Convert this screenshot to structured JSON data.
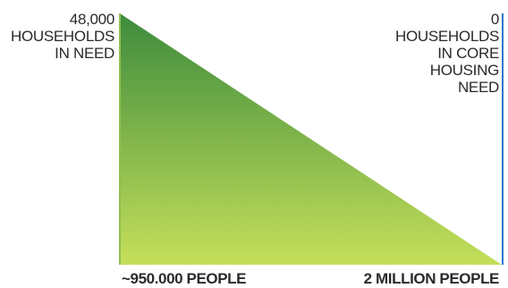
{
  "chart_data": {
    "type": "area",
    "x_labels": [
      "~950.000 PEOPLE",
      "2 MILLION PEOPLE"
    ],
    "values": [
      48000,
      0
    ],
    "ylim": [
      0,
      48000
    ],
    "value_labels": [
      [
        "48,000",
        "HOUSEHOLDS",
        "IN NEED"
      ],
      [
        "0",
        "HOUSEHOLDS",
        "IN CORE",
        "HOUSING",
        "NEED"
      ]
    ],
    "colors": {
      "gradient_top": "#3d8b3d",
      "gradient_bottom": "#c5df5a",
      "left_axis": "#8fbf4f",
      "right_axis": "#2b79c8"
    }
  }
}
